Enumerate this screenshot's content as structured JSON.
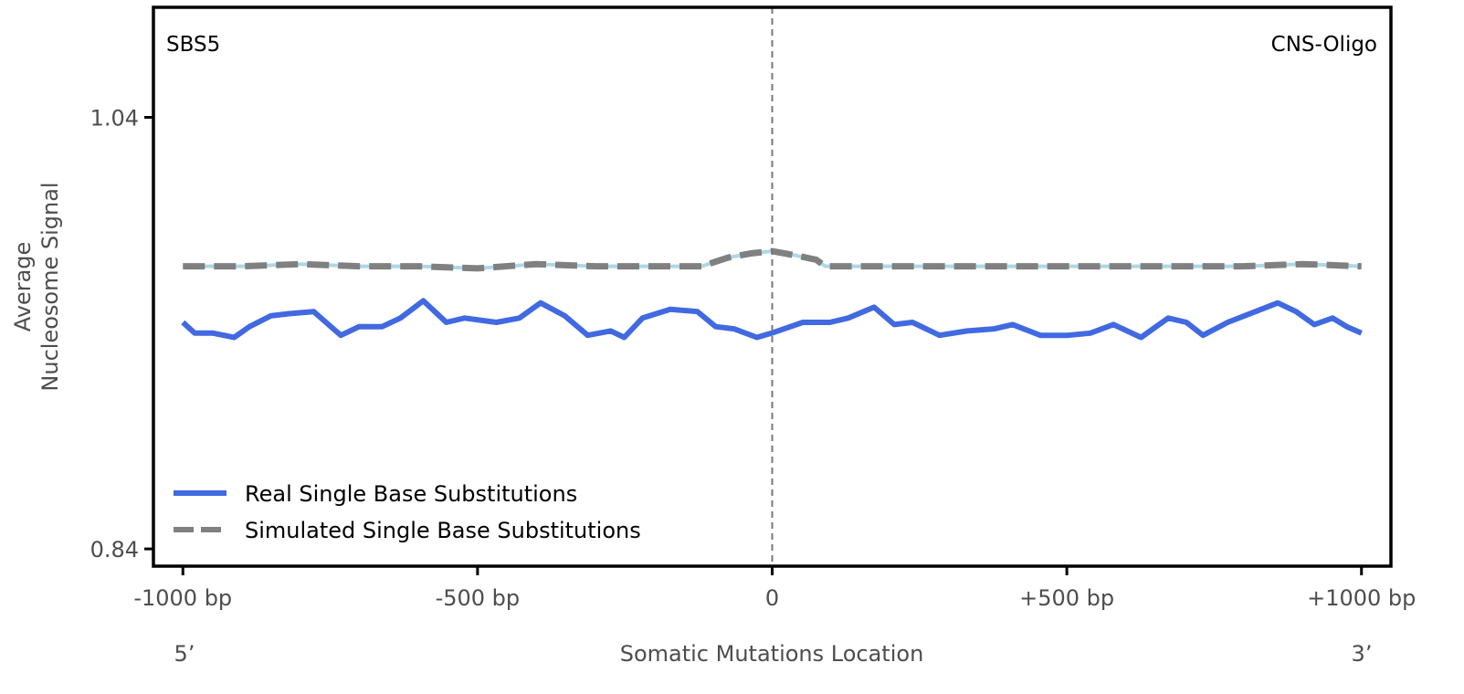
{
  "chart_data": {
    "type": "line",
    "title_left": "SBS5",
    "title_right": "CNS-Oligo",
    "xlabel": "Somatic Mutations Location",
    "ylabel_line1": "Average",
    "ylabel_line2": "Nucleosome Signal",
    "xlim": [
      -1050,
      1050
    ],
    "ylim": [
      0.832,
      1.091
    ],
    "x_ticks": [
      {
        "value": -1000,
        "label": "-1000 bp"
      },
      {
        "value": -500,
        "label": "-500 bp"
      },
      {
        "value": 0,
        "label": "0"
      },
      {
        "value": 500,
        "label": "+500 bp"
      },
      {
        "value": 1000,
        "label": "+1000 bp"
      }
    ],
    "y_ticks": [
      {
        "value": 1.04,
        "label": "1.04"
      },
      {
        "value": 0.84,
        "label": "0.84"
      }
    ],
    "end_labels": {
      "left": "5’",
      "right": "3’"
    },
    "center_line": 0,
    "legend_position": "bottom-left",
    "series": [
      {
        "name": "Real Single Base Substitutions",
        "color": "#4169e1",
        "style": "solid",
        "x": [
          -1000,
          -980,
          -949,
          -913,
          -887,
          -851,
          -820,
          -778,
          -732,
          -701,
          -662,
          -631,
          -592,
          -553,
          -522,
          -468,
          -429,
          -393,
          -352,
          -313,
          -274,
          -251,
          -220,
          -173,
          -127,
          -96,
          -65,
          -26,
          -1,
          52,
          98,
          129,
          173,
          207,
          238,
          284,
          331,
          377,
          408,
          455,
          502,
          540,
          579,
          626,
          672,
          703,
          731,
          773,
          820,
          858,
          889,
          920,
          951,
          975,
          1000
        ],
        "values": [
          0.945,
          0.94,
          0.94,
          0.938,
          0.943,
          0.948,
          0.949,
          0.95,
          0.939,
          0.943,
          0.943,
          0.947,
          0.955,
          0.945,
          0.947,
          0.945,
          0.947,
          0.954,
          0.948,
          0.939,
          0.941,
          0.938,
          0.947,
          0.951,
          0.95,
          0.943,
          0.942,
          0.938,
          0.94,
          0.945,
          0.945,
          0.947,
          0.952,
          0.944,
          0.945,
          0.939,
          0.941,
          0.942,
          0.944,
          0.939,
          0.939,
          0.94,
          0.944,
          0.938,
          0.947,
          0.945,
          0.939,
          0.945,
          0.95,
          0.954,
          0.95,
          0.944,
          0.947,
          0.943,
          0.94
        ]
      },
      {
        "name": "Simulated Single Base Substitutions",
        "color": "#808080",
        "underlay_color": "#add8e6",
        "style": "dashed",
        "x": [
          -1000,
          -900,
          -800,
          -700,
          -600,
          -500,
          -400,
          -300,
          -200,
          -120,
          -75,
          -35,
          0,
          40,
          75,
          90,
          200,
          300,
          400,
          500,
          600,
          700,
          800,
          900,
          1000
        ],
        "values": [
          0.971,
          0.971,
          0.972,
          0.971,
          0.971,
          0.97,
          0.972,
          0.971,
          0.971,
          0.971,
          0.975,
          0.977,
          0.978,
          0.976,
          0.974,
          0.971,
          0.971,
          0.971,
          0.971,
          0.971,
          0.971,
          0.971,
          0.971,
          0.972,
          0.971
        ]
      }
    ]
  }
}
